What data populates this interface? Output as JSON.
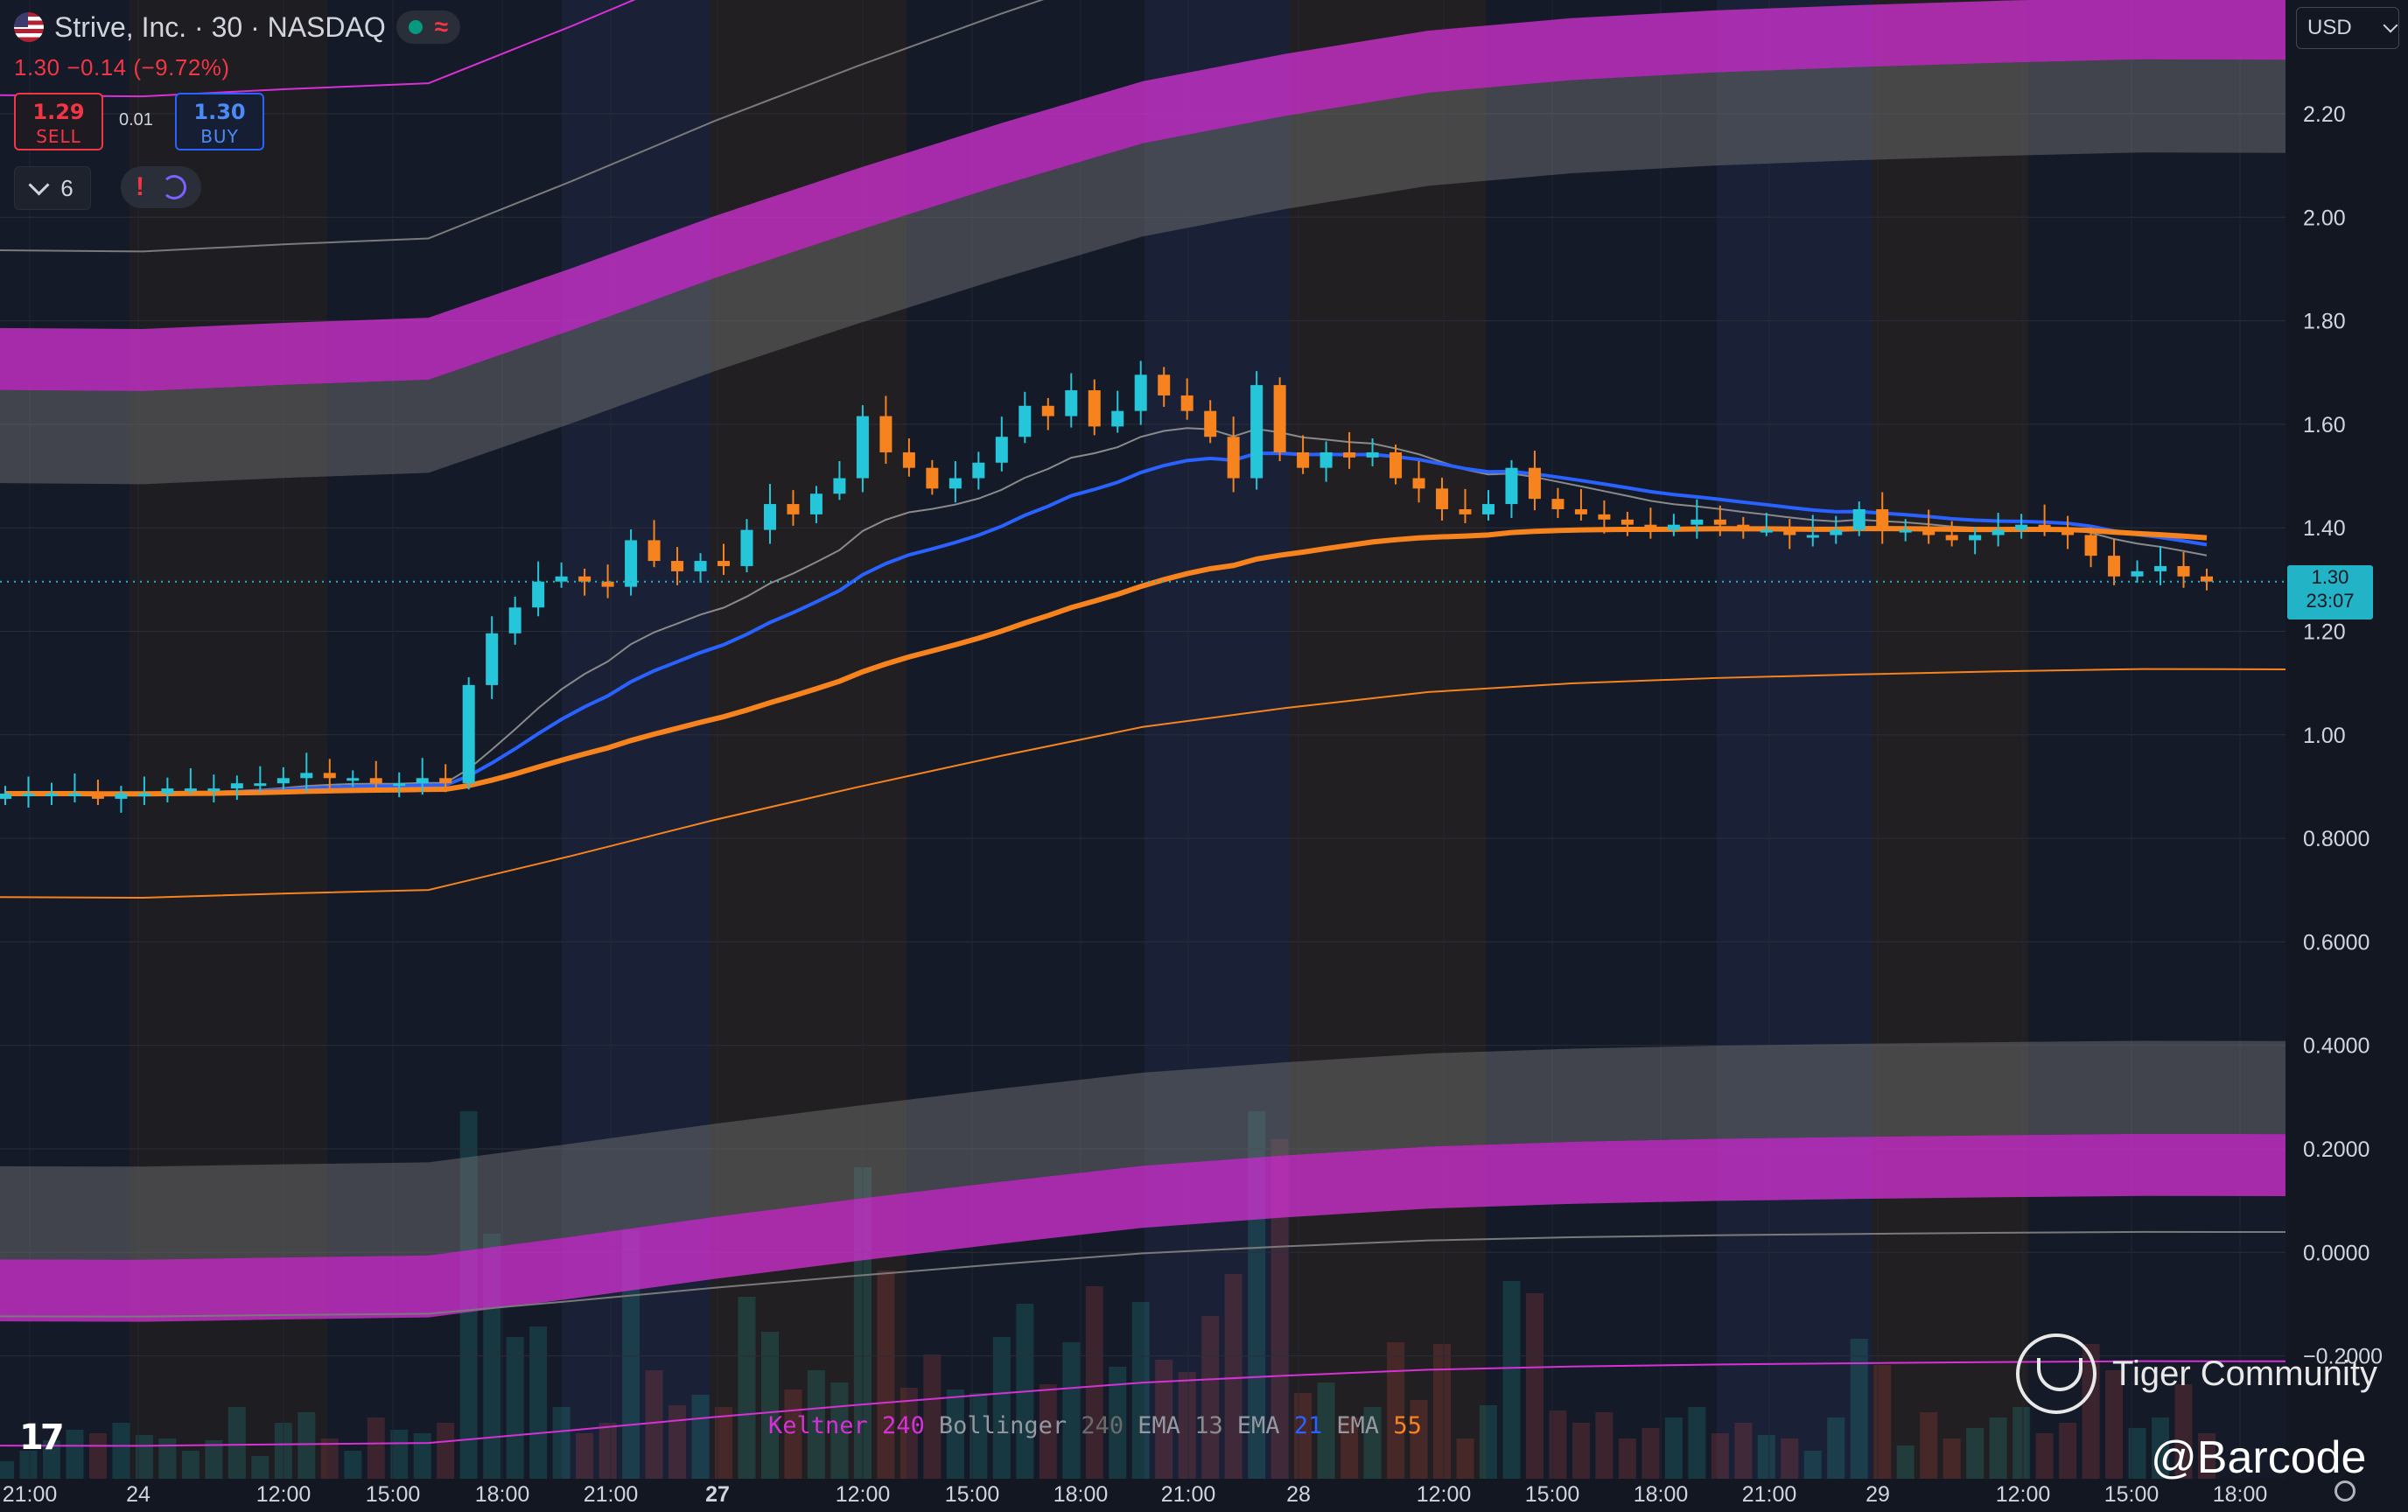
{
  "header": {
    "symbol_title": "Strive, Inc. · 30 · NASDAQ",
    "change": "1.30 −0.14 (−9.72%)",
    "sell_price": "1.29",
    "sell_label": "SELL",
    "spread": "0.01",
    "buy_price": "1.30",
    "buy_label": "BUY",
    "indicator_count": "6",
    "alert_glyph": "!",
    "currency": "USD",
    "market_status": "open"
  },
  "price_tag": {
    "price": "1.30",
    "countdown": "23:07"
  },
  "legend": [
    {
      "name": "Keltner",
      "param": "240",
      "color": "#d631d6"
    },
    {
      "name": "Bollinger",
      "param": "240",
      "color": "#6b6b6b"
    },
    {
      "name": "EMA",
      "param": "13",
      "color": "#8a8a8a"
    },
    {
      "name": "EMA",
      "param": "21",
      "color": "#2962ff"
    },
    {
      "name": "EMA",
      "param": "55",
      "color": "#f7831f"
    }
  ],
  "watermark": {
    "brand": "Tiger Community",
    "handle": "@Barcode"
  },
  "colors": {
    "up": "#26c6da",
    "down": "#f7831f",
    "keltner": "#d631d6",
    "bollinger": "#7a7a7a",
    "ema13": "#8a8a8a",
    "ema21": "#2962ff",
    "ema55": "#f7831f"
  },
  "chart_data": {
    "type": "candlestick",
    "title": "Strive, Inc. · 30 · NASDAQ",
    "y_ticks": [
      "2.20",
      "2.00",
      "1.80",
      "1.60",
      "1.40",
      "1.20",
      "1.00",
      "0.8000",
      "0.6000",
      "0.4000",
      "0.2000",
      "0.0000",
      "−0.2000"
    ],
    "x_ticks": [
      {
        "label": "21:00",
        "bold": false
      },
      {
        "label": "24",
        "bold": false
      },
      {
        "label": "12:00",
        "bold": false
      },
      {
        "label": "15:00",
        "bold": false
      },
      {
        "label": "18:00",
        "bold": false
      },
      {
        "label": "21:00",
        "bold": false
      },
      {
        "label": "27",
        "bold": true
      },
      {
        "label": "12:00",
        "bold": false
      },
      {
        "label": "15:00",
        "bold": false
      },
      {
        "label": "18:00",
        "bold": false
      },
      {
        "label": "21:00",
        "bold": false
      },
      {
        "label": "28",
        "bold": false
      },
      {
        "label": "12:00",
        "bold": false
      },
      {
        "label": "15:00",
        "bold": false
      },
      {
        "label": "18:00",
        "bold": false
      },
      {
        "label": "21:00",
        "bold": false
      },
      {
        "label": "29",
        "bold": false
      },
      {
        "label": "12:00",
        "bold": false
      },
      {
        "label": "15:00",
        "bold": false
      },
      {
        "label": "18:00",
        "bold": false
      }
    ],
    "ylim": [
      -0.24,
      2.42
    ],
    "last_price": 1.3,
    "closes": [
      0.89,
      0.89,
      0.89,
      0.89,
      0.88,
      0.89,
      0.89,
      0.9,
      0.9,
      0.9,
      0.91,
      0.91,
      0.92,
      0.93,
      0.92,
      0.92,
      0.91,
      0.91,
      0.92,
      0.91,
      1.1,
      1.2,
      1.25,
      1.3,
      1.31,
      1.3,
      1.29,
      1.38,
      1.34,
      1.32,
      1.34,
      1.33,
      1.4,
      1.45,
      1.43,
      1.47,
      1.5,
      1.62,
      1.55,
      1.52,
      1.48,
      1.5,
      1.53,
      1.58,
      1.64,
      1.62,
      1.67,
      1.6,
      1.63,
      1.7,
      1.66,
      1.63,
      1.58,
      1.5,
      1.68,
      1.55,
      1.52,
      1.55,
      1.54,
      1.55,
      1.5,
      1.48,
      1.44,
      1.43,
      1.45,
      1.52,
      1.46,
      1.44,
      1.43,
      1.42,
      1.41,
      1.4,
      1.41,
      1.42,
      1.41,
      1.4,
      1.4,
      1.39,
      1.39,
      1.4,
      1.44,
      1.4,
      1.4,
      1.39,
      1.38,
      1.39,
      1.4,
      1.41,
      1.4,
      1.39,
      1.35,
      1.31,
      1.32,
      1.33,
      1.31,
      1.3
    ]
  }
}
